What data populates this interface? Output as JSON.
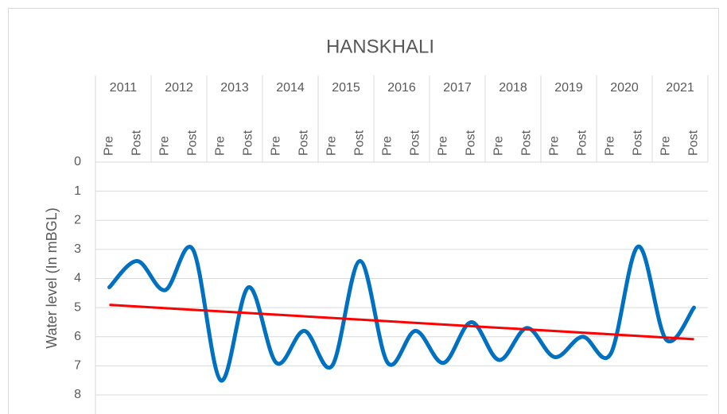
{
  "chart_data": {
    "type": "line",
    "title": "HANSKHALI",
    "y_label": "Water level (In mBGL)",
    "category_groups": [
      "2011",
      "2012",
      "2013",
      "2014",
      "2015",
      "2016",
      "2017",
      "2018",
      "2019",
      "2020",
      "2021"
    ],
    "categories": [
      "Pre",
      "Post",
      "Pre",
      "Post",
      "Pre",
      "Post",
      "Pre",
      "Post",
      "Pre",
      "Post",
      "Pre",
      "Post",
      "Pre",
      "Post",
      "Pre",
      "Post",
      "Pre",
      "Post",
      "Pre",
      "Post",
      "Pre",
      "Post"
    ],
    "series": [
      {
        "name": null,
        "color": "#0070c0",
        "values": [
          4.3,
          3.4,
          4.4,
          3.0,
          7.5,
          4.3,
          6.9,
          5.8,
          7.0,
          3.4,
          6.9,
          5.8,
          6.9,
          5.5,
          6.8,
          5.7,
          6.7,
          6.0,
          6.6,
          2.9,
          6.1,
          5.0
        ]
      }
    ],
    "trendline_color": "#ff0000",
    "ylim": [
      0,
      8
    ],
    "yticks": [
      0,
      1,
      2,
      3,
      4,
      5,
      6,
      7,
      8
    ],
    "y_reversed": true,
    "grid": true
  }
}
